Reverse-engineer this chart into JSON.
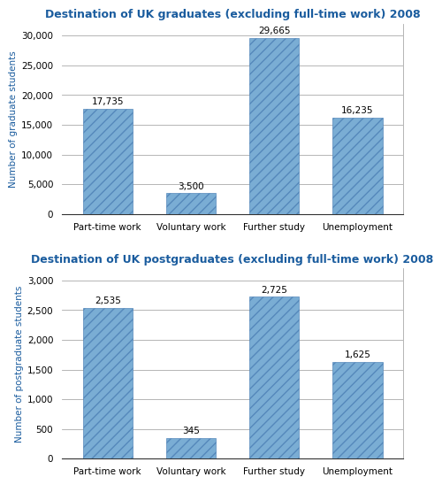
{
  "chart1": {
    "title": "Destination of UK graduates (excluding full-time work) 2008",
    "categories": [
      "Part-time work",
      "Voluntary work",
      "Further study",
      "Unemployment"
    ],
    "values": [
      17735,
      3500,
      29665,
      16235
    ],
    "labels": [
      "17,735",
      "3,500",
      "29,665",
      "16,235"
    ],
    "ylabel": "Number of graduate students",
    "ylim": [
      0,
      32000
    ],
    "yticks": [
      0,
      5000,
      10000,
      15000,
      20000,
      25000,
      30000
    ],
    "ytick_labels": [
      "0",
      "5,000",
      "10,000",
      "15,000",
      "20,000",
      "25,000",
      "30,000"
    ]
  },
  "chart2": {
    "title": "Destination of UK postgraduates (excluding full-time work) 2008",
    "categories": [
      "Part-time work",
      "Voluntary work",
      "Further study",
      "Unemployment"
    ],
    "values": [
      2535,
      345,
      2725,
      1625
    ],
    "labels": [
      "2,535",
      "345",
      "2,725",
      "1,625"
    ],
    "ylabel": "Number of postgraduate students",
    "ylim": [
      0,
      3200
    ],
    "yticks": [
      0,
      500,
      1000,
      1500,
      2000,
      2500,
      3000
    ],
    "ytick_labels": [
      "0",
      "500",
      "1,000",
      "1,500",
      "2,000",
      "2,500",
      "3,000"
    ]
  },
  "bar_color": "#7aadd4",
  "bar_edge_color": "#5588bb",
  "bar_hatch": "///",
  "title_color": "#1a5c9e",
  "ylabel_color": "#1a5c9e",
  "label_fontsize": 7.5,
  "title_fontsize": 9.0,
  "ylabel_fontsize": 7.5,
  "xtick_fontsize": 7.5,
  "ytick_fontsize": 7.5,
  "bar_width": 0.6
}
